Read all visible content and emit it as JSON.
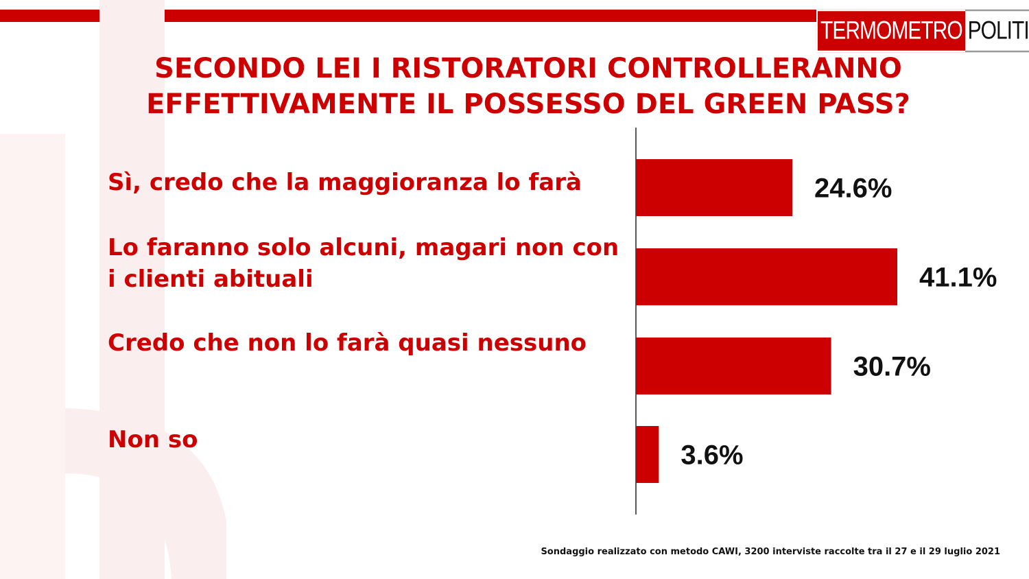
{
  "brand": {
    "logo_left": "TERMOMETRO",
    "logo_right": "POLITICO",
    "accent_color": "#cc0000"
  },
  "title": "SECONDO LEI I RISTORATORI CONTROLLERANNO EFFETTIVAMENTE IL POSSESSO DEL GREEN PASS?",
  "footnote": "Sondaggio realizzato con metodo CAWI, 3200 interviste raccolte tra il 27 e il 29  luglio 2021",
  "chart_data": {
    "type": "bar",
    "orientation": "horizontal",
    "title": "SECONDO LEI I RISTORATORI CONTROLLERANNO EFFETTIVAMENTE IL POSSESSO DEL GREEN PASS?",
    "categories": [
      "Sì, credo che la maggioranza lo farà",
      "Lo faranno solo alcuni, magari non con i clienti abituali",
      "Credo che non lo farà  quasi nessuno",
      "Non so"
    ],
    "values": [
      24.6,
      41.1,
      30.7,
      3.6
    ],
    "value_labels": [
      "24.6%",
      "41.1%",
      "30.7%",
      "3.6%"
    ],
    "unit": "%",
    "xlim": [
      0,
      45
    ],
    "grid": false,
    "legend": "none",
    "bar_color": "#cc0000"
  }
}
